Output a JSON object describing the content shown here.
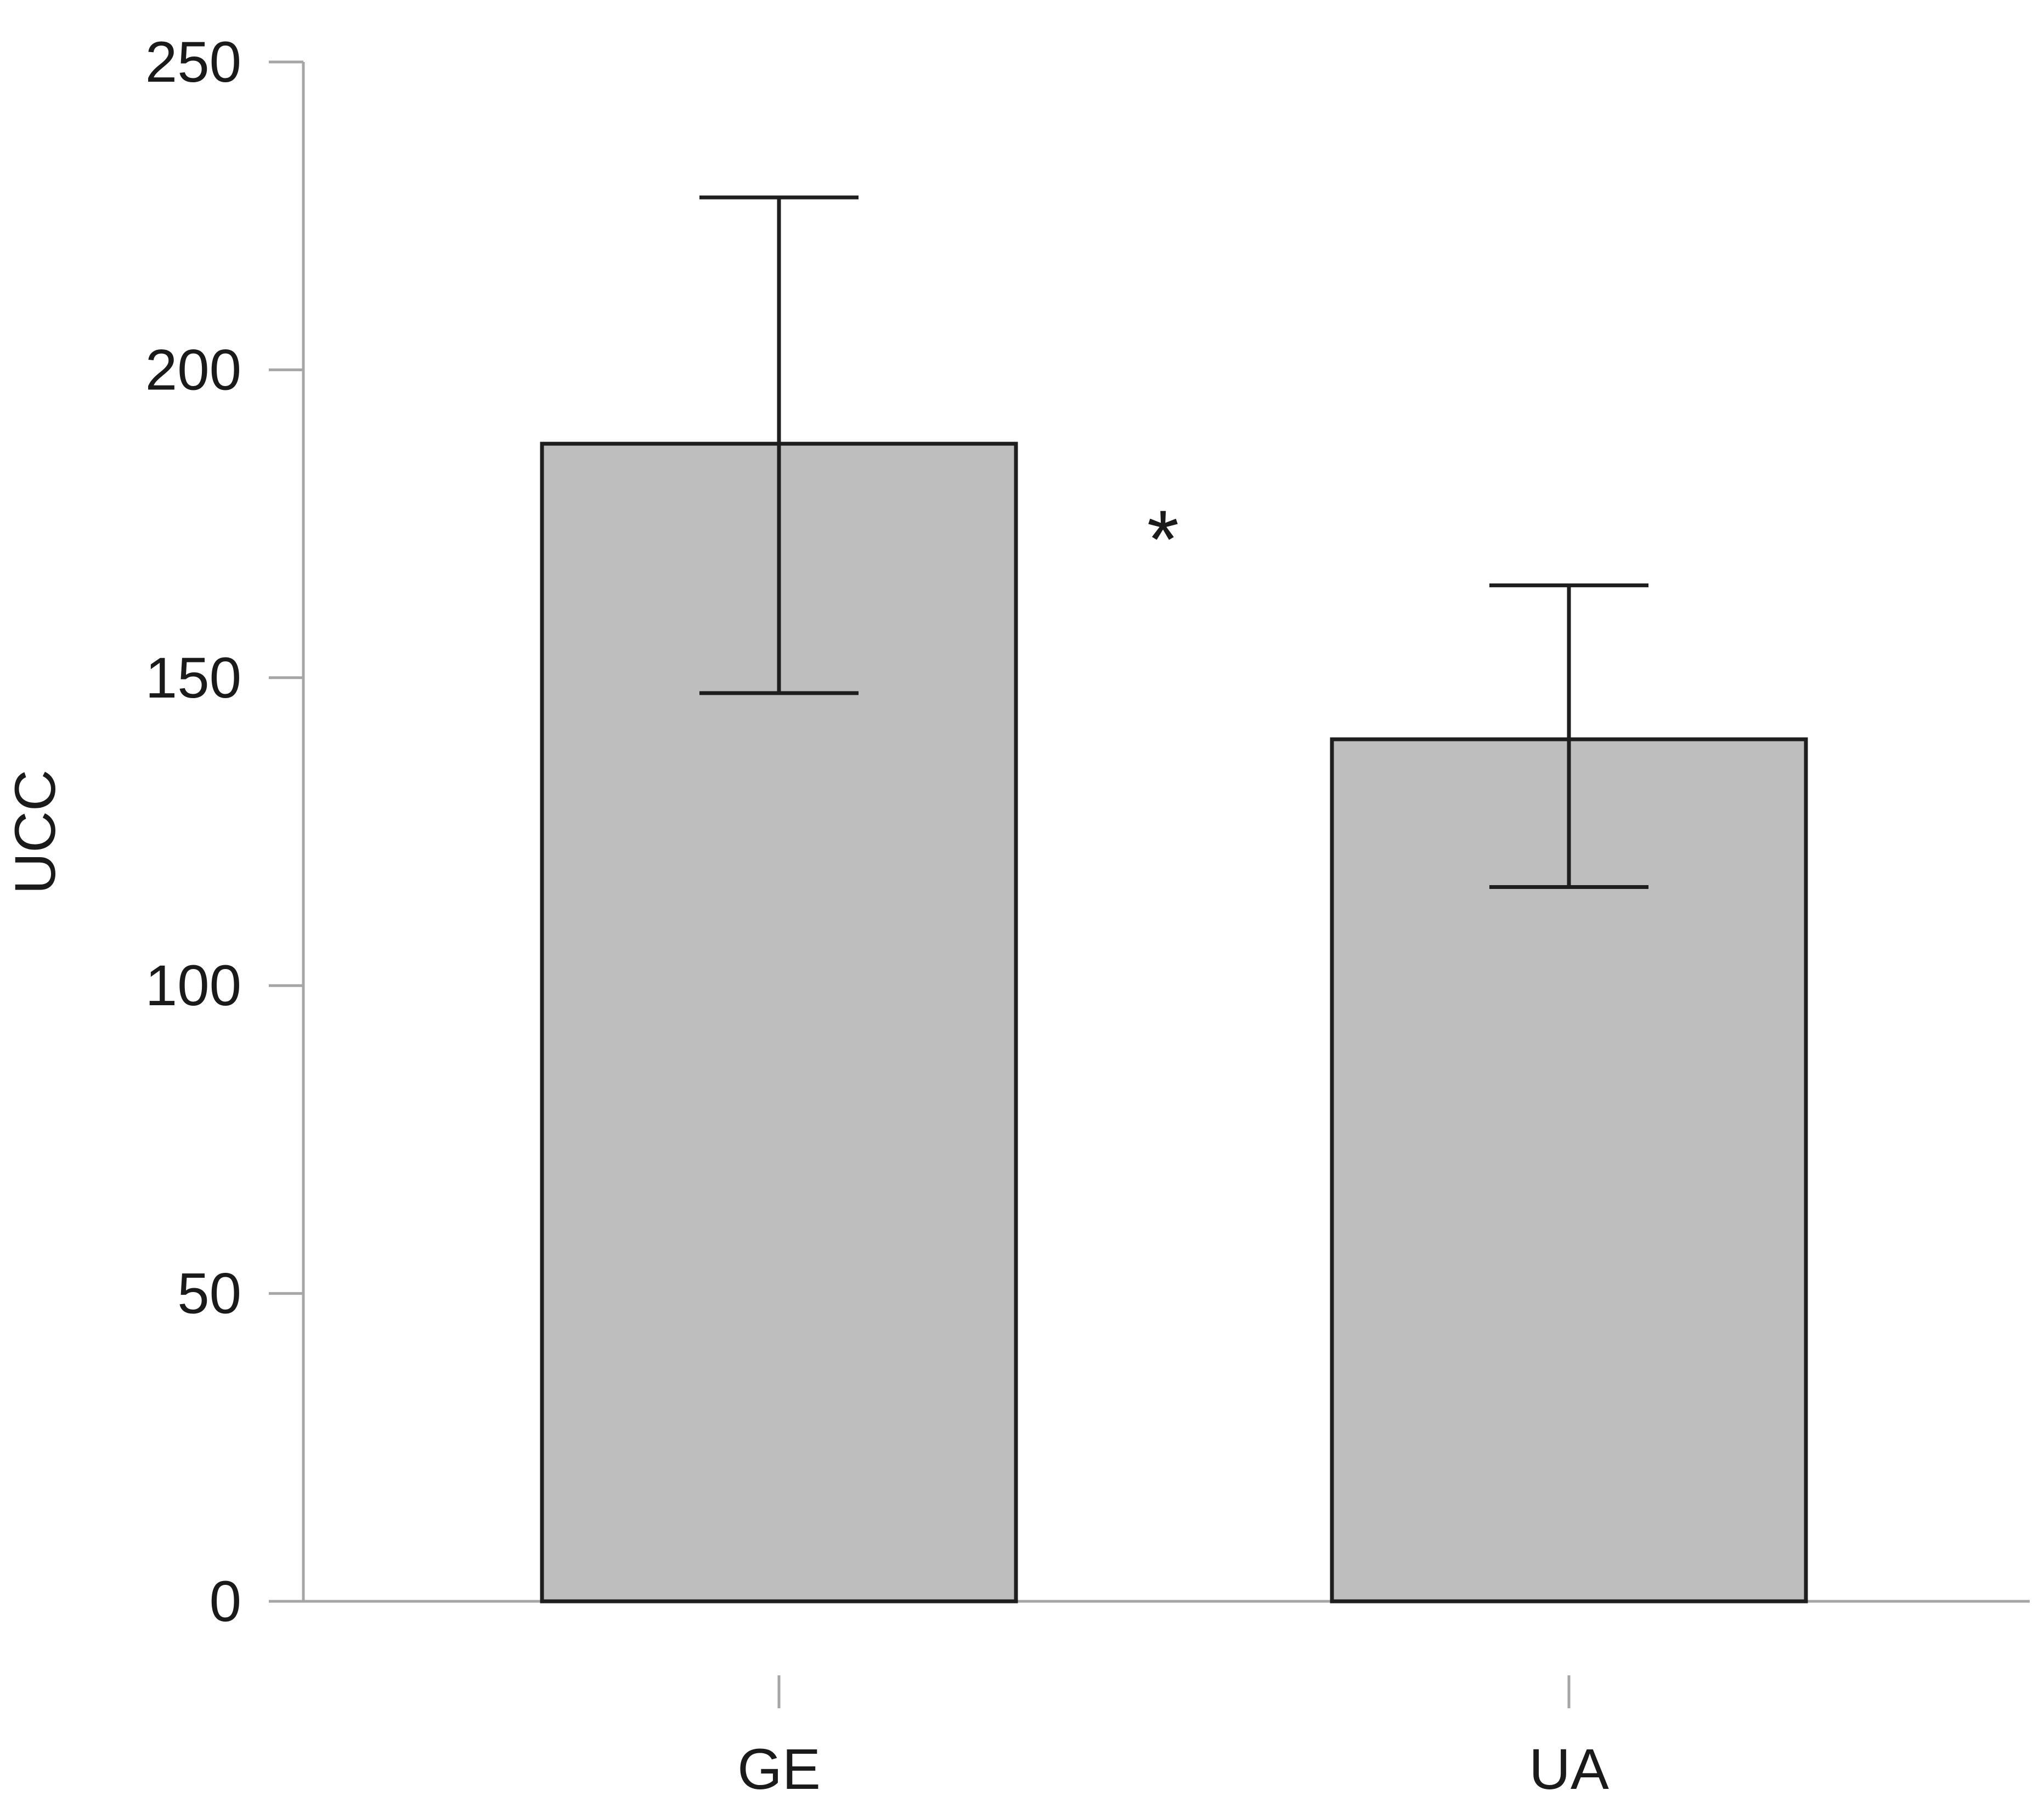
{
  "chart_data": {
    "type": "bar",
    "categories": [
      "GE",
      "UA"
    ],
    "values": [
      188,
      140
    ],
    "error_bars": [
      {
        "lower": 147.5,
        "upper": 228
      },
      {
        "lower": 116,
        "upper": 165
      }
    ],
    "title": "",
    "xlabel": "",
    "ylabel": "UCC",
    "ylim": [
      0,
      250
    ],
    "yticks": [
      "0",
      "50",
      "100",
      "150",
      "200",
      "250"
    ],
    "grid": false,
    "annotation": "*",
    "colors": {
      "bar_fill": "#bdbebd",
      "bar_stroke": "#1e1e1e",
      "axis": "#a6a6a6",
      "error_bar": "#1e1e1e"
    }
  }
}
